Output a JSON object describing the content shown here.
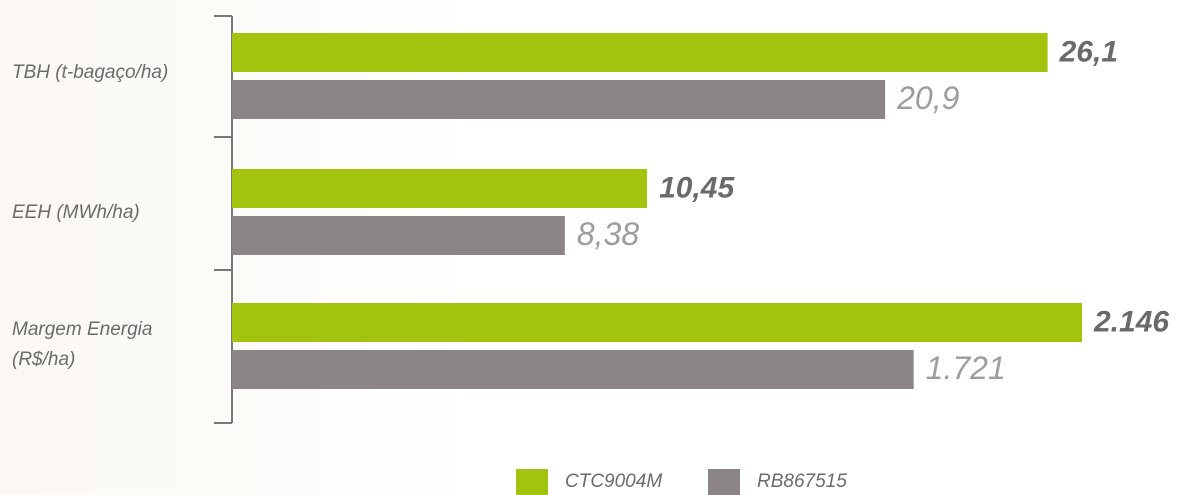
{
  "chart_data": {
    "type": "bar",
    "categories": [
      "TBH (t-bagaço/ha)",
      "EEH (MWh/ha)",
      "Margem Energia\n(R$/ha)"
    ],
    "xlims": [
      [
        0,
        27.2
      ],
      [
        0,
        21.4
      ],
      [
        0,
        2146
      ]
    ],
    "series": [
      {
        "name": "CTC9004M",
        "color": "#a2c40f",
        "values": [
          26.1,
          10.45,
          2146
        ],
        "value_labels": [
          "26,1",
          "10,45",
          "2.146"
        ]
      },
      {
        "name": "RB867515",
        "color": "#8c8586",
        "values": [
          20.9,
          8.38,
          1721
        ],
        "value_labels": [
          "20,9",
          "8,38",
          "1.721"
        ]
      }
    ]
  }
}
